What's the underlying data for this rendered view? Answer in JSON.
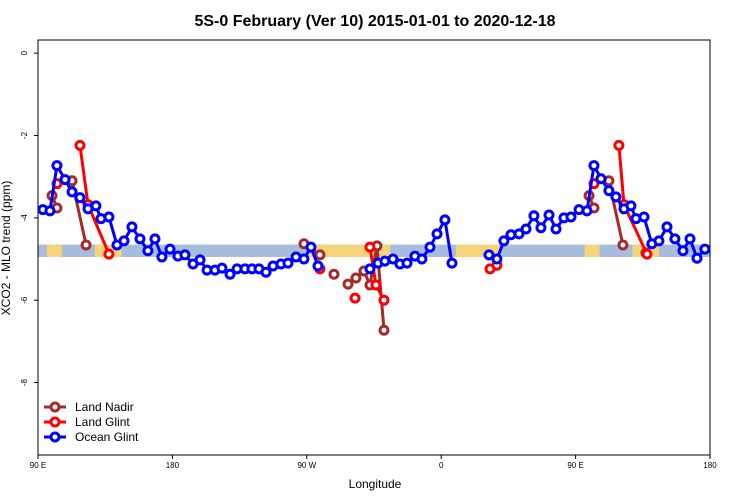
{
  "chart_data": {
    "type": "line",
    "title": "5S-0 February (Ver 10)   2015-01-01 to 2020-12-18",
    "x_label": "Longitude",
    "y_label": "XCO2 - MLO trend (ppm)",
    "xlim": [
      90,
      540
    ],
    "ylim": [
      -9.76,
      0.32
    ],
    "xticks": [
      {
        "value": 90,
        "label": "90 E"
      },
      180,
      {
        "value": 270,
        "label": "90 W"
      },
      {
        "value": 360,
        "label": "0"
      },
      {
        "value": 450,
        "label": "90 E"
      },
      {
        "value": 540,
        "label": "180"
      }
    ],
    "yticks": [
      0,
      -2,
      -4,
      -6,
      -8
    ],
    "legend": "bottom-left",
    "surface_band": {
      "ylim": [
        -4.95,
        -4.65
      ],
      "ocean_color": "#a6bddb",
      "land_color": "#f6d57a",
      "land_x": [
        [
          96,
          106
        ],
        [
          128,
          146
        ],
        [
          271,
          326
        ],
        [
          370,
          400
        ],
        [
          456,
          466
        ],
        [
          488,
          506
        ]
      ]
    },
    "series": [
      {
        "name": "Land Nadir",
        "color": "#a52a2a",
        "x": [
          99.4,
          102.7,
          null,
          112.8,
          122.2,
          null,
          268.1,
          278.8,
          null,
          288.2,
          null,
          297.6,
          302.9,
          308.3,
          312.3,
          317.0,
          321.7,
          null,
          459.0,
          462.3,
          null,
          472.3,
          481.7,
          null,
          497.1
        ],
        "values": [
          -3.46,
          -3.76,
          null,
          -3.1,
          -4.66,
          null,
          -4.63,
          -4.9,
          null,
          -5.37,
          null,
          -5.61,
          -5.46,
          -5.29,
          -5.63,
          -4.68,
          -6.73,
          null,
          -3.46,
          -3.76,
          null,
          -3.1,
          -4.66,
          null,
          -4.85
        ]
      },
      {
        "name": "Land Glint",
        "color": "#ff0000",
        "x": [
          102.7,
          null,
          118.1,
          123.5,
          137.5,
          null,
          278.8,
          null,
          302.3,
          null,
          312.3,
          316.3,
          321.7,
          null,
          392.7,
          397.3,
          null,
          462.3,
          null,
          479.0,
          482.4,
          497.8
        ],
        "values": [
          -3.17,
          null,
          -2.24,
          -3.68,
          -4.88,
          null,
          -5.24,
          null,
          -5.95,
          null,
          -4.71,
          -5.63,
          -6.0,
          null,
          -5.24,
          -5.15,
          null,
          -3.17,
          null,
          -2.24,
          -3.68,
          -4.88
        ]
      },
      {
        "name": "Ocean Glint",
        "color": "#0000ff",
        "x": [
          93.3,
          98.0,
          102.7,
          108.1,
          112.8,
          118.1,
          123.5,
          128.8,
          132.2,
          137.5,
          142.9,
          147.6,
          152.9,
          158.3,
          163.6,
          168.3,
          173.0,
          178.4,
          183.7,
          188.4,
          193.8,
          198.5,
          203.2,
          208.5,
          213.2,
          218.6,
          223.3,
          228.6,
          233.3,
          238.0,
          242.7,
          247.4,
          252.7,
          257.4,
          262.8,
          268.1,
          272.8,
          277.5,
          null,
          312.3,
          317.7,
          322.3,
          327.7,
          332.4,
          337.1,
          342.4,
          347.1,
          352.5,
          357.2,
          362.5,
          367.2,
          null,
          392.0,
          397.3,
          402.0,
          406.7,
          412.1,
          416.8,
          422.1,
          426.8,
          432.2,
          436.9,
          442.2,
          446.9,
          452.3,
          457.6,
          462.3,
          467.0,
          472.3,
          477.0,
          482.4,
          487.1,
          490.4,
          495.8,
          501.1,
          505.8,
          511.2,
          516.5,
          521.9,
          526.6,
          531.3,
          536.6
        ],
        "values": [
          -3.8,
          -3.83,
          -2.73,
          -3.07,
          -3.37,
          -3.51,
          -3.78,
          -3.71,
          -4.02,
          -3.98,
          -4.66,
          -4.56,
          -4.22,
          -4.51,
          -4.8,
          -4.51,
          -4.95,
          -4.76,
          -4.93,
          -4.9,
          -5.12,
          -5.02,
          -5.27,
          -5.27,
          -5.22,
          -5.37,
          -5.24,
          -5.24,
          -5.24,
          -5.24,
          -5.32,
          -5.17,
          -5.12,
          -5.1,
          -4.95,
          -5.0,
          -4.71,
          -5.17,
          null,
          -5.24,
          -5.1,
          -5.05,
          -5.0,
          -5.12,
          -5.1,
          -4.93,
          -5.0,
          -4.71,
          -4.39,
          -4.05,
          -5.1,
          null,
          -4.9,
          -5.0,
          -4.56,
          -4.41,
          -4.39,
          -4.27,
          -3.95,
          -4.24,
          -3.93,
          -4.27,
          -4.0,
          -3.98,
          -3.8,
          -3.83,
          -2.73,
          -3.05,
          -3.34,
          -3.49,
          -3.78,
          -3.71,
          -4.02,
          -3.98,
          -4.63,
          -4.56,
          -4.22,
          -4.51,
          -4.8,
          -4.51,
          -4.98,
          -4.76
        ]
      }
    ]
  }
}
